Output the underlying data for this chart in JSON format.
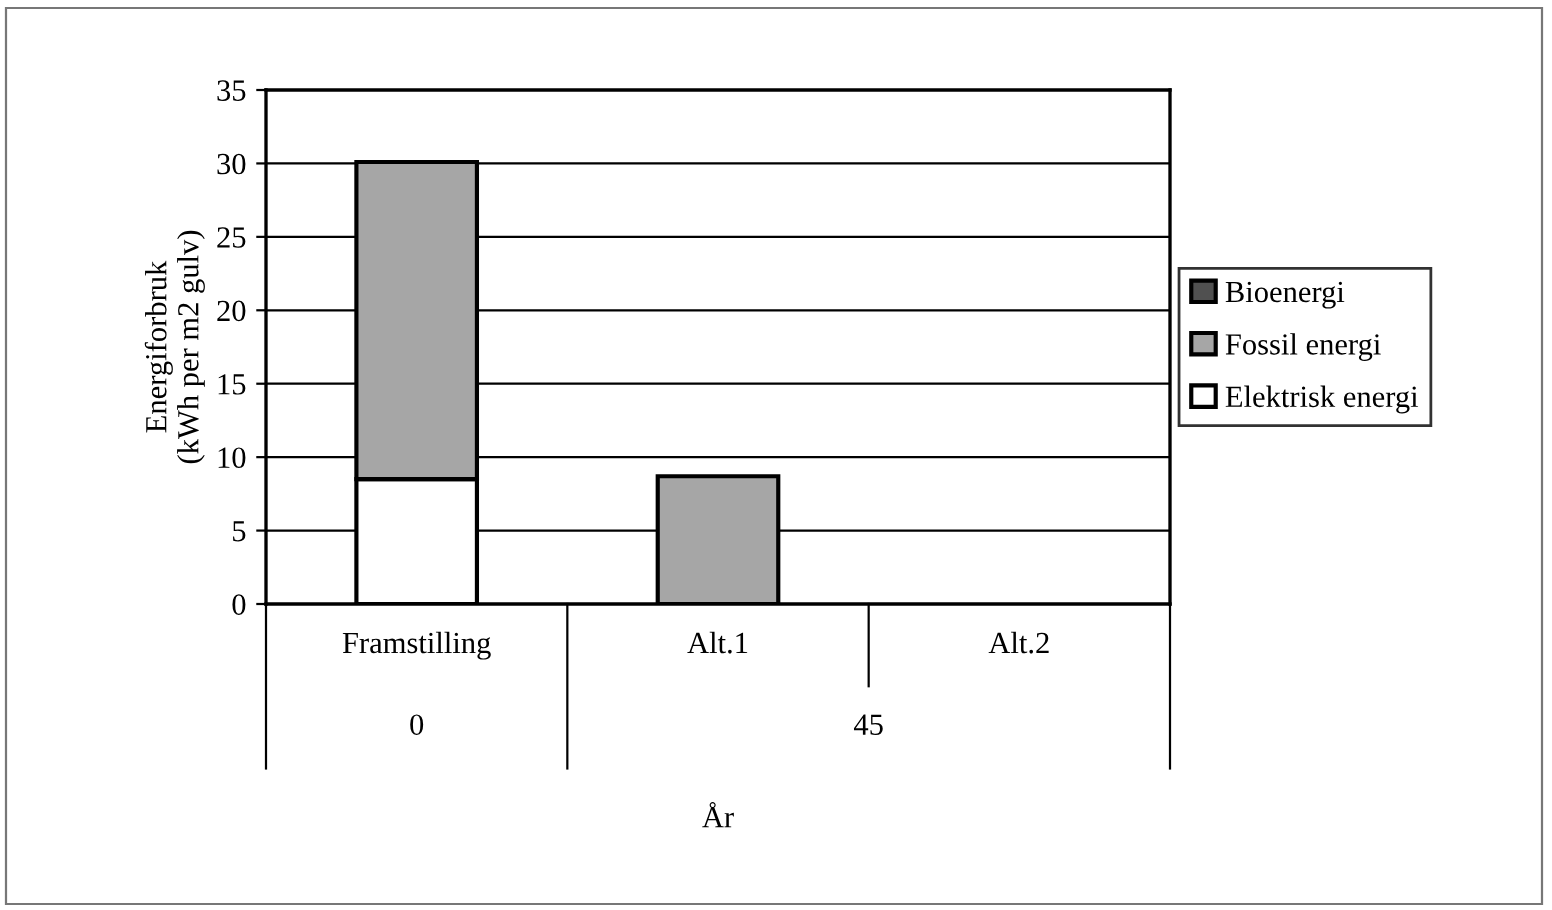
{
  "chart_data": {
    "type": "bar",
    "stacked": true,
    "categories": [
      "Framstilling",
      "Alt.1",
      "Alt.2"
    ],
    "series": [
      {
        "name": "Elektrisk energi",
        "color": "#ffffff",
        "values": [
          8.5,
          null,
          null
        ]
      },
      {
        "name": "Fossil energi",
        "color": "#a6a6a6",
        "values": [
          21.6,
          8.7,
          null
        ]
      },
      {
        "name": "Bioenergi",
        "color": "#505050",
        "values": [
          null,
          null,
          null
        ]
      }
    ],
    "ylabel": "Energiforbruk\n(kWh per m2 gulv)",
    "xlabel": "År",
    "annotations": [
      "0",
      "45"
    ],
    "ylim": [
      0,
      35
    ],
    "yticks": [
      0,
      5,
      10,
      15,
      20,
      25,
      30,
      35
    ],
    "grid": "y",
    "legend": "right"
  }
}
